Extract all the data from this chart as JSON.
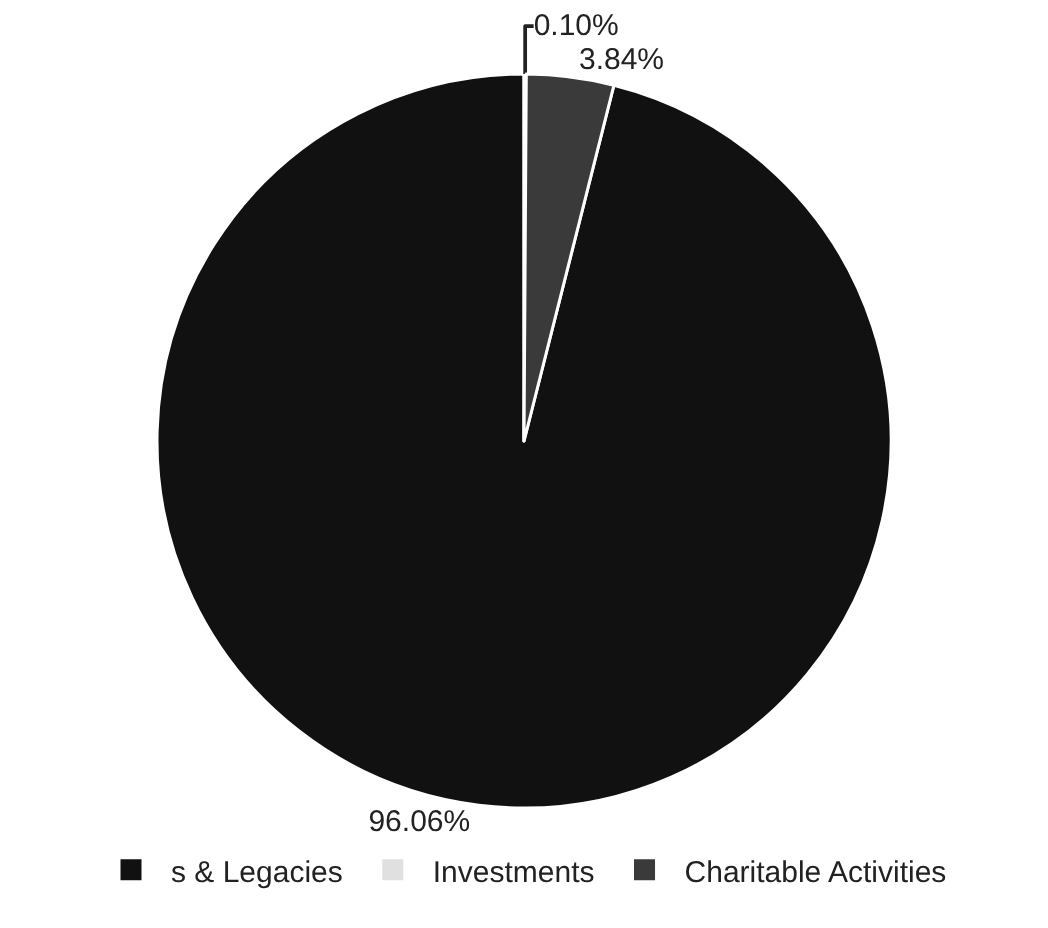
{
  "chart_data": {
    "type": "pie",
    "categories": [
      "s & Legacies",
      "Investments",
      "Charitable Activities"
    ],
    "values": [
      96.06,
      0.1,
      3.84
    ],
    "value_labels": [
      "96.06%",
      "0.10%",
      "3.84%"
    ],
    "colors": [
      "#111111",
      "#e0e0e0",
      "#3a3a3a"
    ],
    "legend": "bottom"
  }
}
